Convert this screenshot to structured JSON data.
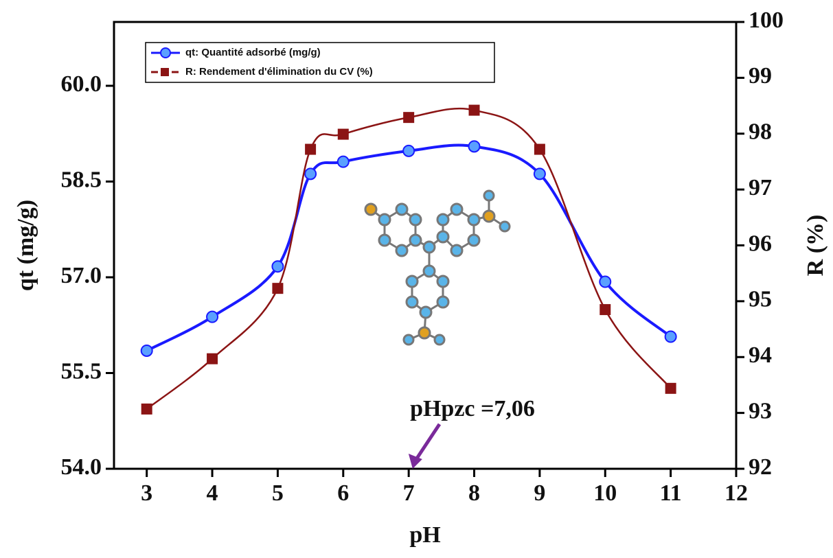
{
  "chart_data": {
    "type": "line",
    "x_label": "pH",
    "y_label": "qt (mg/g)",
    "y2_label": "R (%)",
    "x": [
      3,
      4,
      5,
      5.5,
      6,
      7,
      8,
      9,
      10,
      11
    ],
    "series": [
      {
        "name": "qt: Quantité adsorbé (mg/g)",
        "color": "#1a1aff",
        "marker": "circle",
        "values": [
          55.85,
          56.38,
          57.17,
          58.62,
          58.81,
          58.98,
          59.05,
          58.62,
          56.93,
          56.07
        ]
      },
      {
        "name": "R: Rendement d'élimination du CV (%)",
        "color": "#8b1414",
        "marker": "square",
        "axis": "y2",
        "values": [
          93.07,
          93.97,
          95.23,
          97.72,
          97.99,
          98.29,
          98.42,
          97.72,
          94.85,
          93.44
        ]
      }
    ],
    "xlim": [
      2.5,
      12
    ],
    "xticks": [
      3,
      4,
      5,
      6,
      7,
      8,
      9,
      10,
      11,
      12
    ],
    "ylim": [
      54,
      61
    ],
    "yticks": [
      {
        "value": 54,
        "label": "54.0"
      },
      {
        "value": 55.5,
        "label": "55.5"
      },
      {
        "value": 57,
        "label": "57.0"
      },
      {
        "value": 58.5,
        "label": "58.5"
      },
      {
        "value": 60,
        "label": "60.0"
      }
    ],
    "y2lim": [
      92,
      100
    ],
    "y2ticks": [
      92,
      93,
      94,
      95,
      96,
      97,
      98,
      99,
      100
    ],
    "annotation": {
      "text": "pHpzc =7,06",
      "x": 7.06
    },
    "legend": "top-left"
  }
}
